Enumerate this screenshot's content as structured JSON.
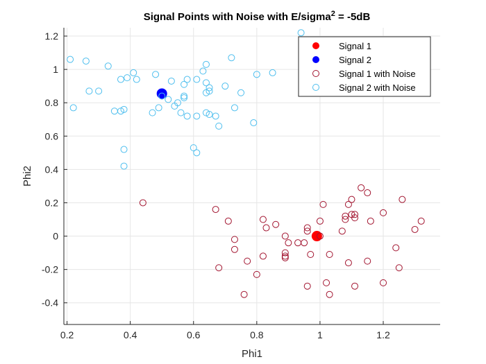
{
  "chart_data": {
    "type": "scatter",
    "title": "Signal Points with Noise with E/sigma",
    "title_superscript": "2",
    "title_suffix": " = -5dB",
    "xlabel": "Phi1",
    "ylabel": "Phi2",
    "xlim": [
      0.19,
      1.38
    ],
    "ylim": [
      -0.53,
      1.25
    ],
    "xticks": [
      0.2,
      0.4,
      0.6,
      0.8,
      1,
      1.2
    ],
    "xtick_labels": [
      "0.2",
      "0.4",
      "0.6",
      "0.8",
      "1",
      "1.2"
    ],
    "yticks": [
      -0.4,
      -0.2,
      0,
      0.2,
      0.4,
      0.6,
      0.8,
      1,
      1.2
    ],
    "ytick_labels": [
      "-0.4",
      "-0.2",
      "0",
      "0.2",
      "0.4",
      "0.6",
      "0.8",
      "1",
      "1.2"
    ],
    "grid": true,
    "legend_position": "top-right",
    "series": [
      {
        "name": "Signal 1",
        "color": "#ff0000",
        "marker": "filled-circle",
        "points": [
          [
            0.99,
            0.0
          ]
        ]
      },
      {
        "name": "Signal 2",
        "color": "#0000ff",
        "marker": "filled-circle",
        "points": [
          [
            0.5,
            0.855
          ]
        ]
      },
      {
        "name": "Signal 1 with Noise",
        "color": "#a2142f",
        "marker": "open-circle",
        "points": [
          [
            0.44,
            0.2
          ],
          [
            0.67,
            0.16
          ],
          [
            0.71,
            0.09
          ],
          [
            0.73,
            -0.02
          ],
          [
            0.73,
            -0.08
          ],
          [
            0.68,
            -0.19
          ],
          [
            0.82,
            0.1
          ],
          [
            0.83,
            0.05
          ],
          [
            0.86,
            0.07
          ],
          [
            0.82,
            -0.12
          ],
          [
            0.77,
            -0.15
          ],
          [
            0.8,
            -0.23
          ],
          [
            0.76,
            -0.35
          ],
          [
            0.89,
            0.0
          ],
          [
            0.9,
            -0.04
          ],
          [
            0.89,
            -0.1
          ],
          [
            0.89,
            -0.12
          ],
          [
            0.89,
            -0.13
          ],
          [
            0.93,
            -0.04
          ],
          [
            0.95,
            -0.04
          ],
          [
            0.96,
            0.03
          ],
          [
            0.96,
            0.05
          ],
          [
            0.97,
            -0.11
          ],
          [
            1.0,
            0.09
          ],
          [
            1.0,
            0.0
          ],
          [
            1.01,
            0.19
          ],
          [
            1.02,
            -0.28
          ],
          [
            1.03,
            -0.11
          ],
          [
            0.96,
            -0.3
          ],
          [
            1.03,
            -0.35
          ],
          [
            1.07,
            0.03
          ],
          [
            1.08,
            0.12
          ],
          [
            1.08,
            0.1
          ],
          [
            1.09,
            0.19
          ],
          [
            1.1,
            0.22
          ],
          [
            1.1,
            0.13
          ],
          [
            1.11,
            0.13
          ],
          [
            1.11,
            0.11
          ],
          [
            1.13,
            0.29
          ],
          [
            1.15,
            0.26
          ],
          [
            1.16,
            0.09
          ],
          [
            1.15,
            -0.15
          ],
          [
            1.09,
            -0.16
          ],
          [
            1.11,
            -0.3
          ],
          [
            1.2,
            0.14
          ],
          [
            1.2,
            -0.28
          ],
          [
            1.24,
            -0.07
          ],
          [
            1.25,
            -0.19
          ],
          [
            1.26,
            0.22
          ],
          [
            1.3,
            0.04
          ],
          [
            1.32,
            0.09
          ]
        ]
      },
      {
        "name": "Signal 2 with Noise",
        "color": "#4dbeee",
        "marker": "open-circle",
        "points": [
          [
            0.21,
            1.06
          ],
          [
            0.22,
            0.77
          ],
          [
            0.26,
            1.05
          ],
          [
            0.27,
            0.87
          ],
          [
            0.3,
            0.87
          ],
          [
            0.33,
            1.02
          ],
          [
            0.35,
            0.75
          ],
          [
            0.37,
            0.75
          ],
          [
            0.37,
            0.94
          ],
          [
            0.38,
            0.76
          ],
          [
            0.38,
            0.52
          ],
          [
            0.38,
            0.42
          ],
          [
            0.39,
            0.95
          ],
          [
            0.41,
            0.98
          ],
          [
            0.42,
            0.94
          ],
          [
            0.47,
            0.74
          ],
          [
            0.48,
            0.97
          ],
          [
            0.49,
            0.77
          ],
          [
            0.5,
            0.84
          ],
          [
            0.52,
            0.82
          ],
          [
            0.53,
            0.93
          ],
          [
            0.54,
            0.78
          ],
          [
            0.55,
            0.8
          ],
          [
            0.56,
            0.74
          ],
          [
            0.57,
            0.83
          ],
          [
            0.57,
            0.84
          ],
          [
            0.57,
            0.91
          ],
          [
            0.58,
            0.94
          ],
          [
            0.58,
            0.72
          ],
          [
            0.61,
            0.94
          ],
          [
            0.61,
            0.72
          ],
          [
            0.6,
            0.53
          ],
          [
            0.61,
            0.5
          ],
          [
            0.63,
            0.99
          ],
          [
            0.64,
            1.03
          ],
          [
            0.64,
            0.92
          ],
          [
            0.64,
            0.86
          ],
          [
            0.65,
            0.87
          ],
          [
            0.65,
            0.89
          ],
          [
            0.64,
            0.74
          ],
          [
            0.65,
            0.73
          ],
          [
            0.67,
            0.72
          ],
          [
            0.68,
            0.66
          ],
          [
            0.7,
            0.9
          ],
          [
            0.72,
            1.07
          ],
          [
            0.73,
            0.77
          ],
          [
            0.75,
            0.86
          ],
          [
            0.79,
            0.68
          ],
          [
            0.8,
            0.97
          ],
          [
            0.85,
            0.98
          ],
          [
            0.94,
            1.22
          ]
        ]
      }
    ]
  }
}
